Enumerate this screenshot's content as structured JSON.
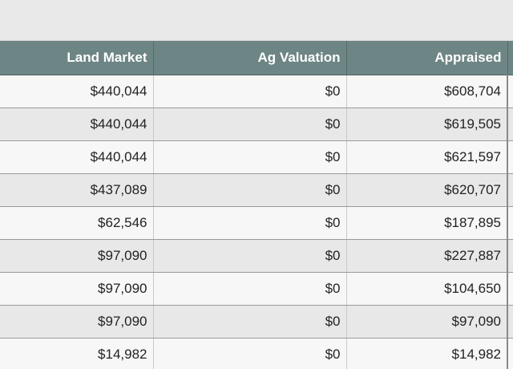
{
  "table": {
    "headers": {
      "land_market": "Land Market",
      "ag_valuation": "Ag Valuation",
      "appraised": "Appraised"
    },
    "rows": [
      {
        "land_market": "$440,044",
        "ag_valuation": "$0",
        "appraised": "$608,704"
      },
      {
        "land_market": "$440,044",
        "ag_valuation": "$0",
        "appraised": "$619,505"
      },
      {
        "land_market": "$440,044",
        "ag_valuation": "$0",
        "appraised": "$621,597"
      },
      {
        "land_market": "$437,089",
        "ag_valuation": "$0",
        "appraised": "$620,707"
      },
      {
        "land_market": "$62,546",
        "ag_valuation": "$0",
        "appraised": "$187,895"
      },
      {
        "land_market": "$97,090",
        "ag_valuation": "$0",
        "appraised": "$227,887"
      },
      {
        "land_market": "$97,090",
        "ag_valuation": "$0",
        "appraised": "$104,650"
      },
      {
        "land_market": "$97,090",
        "ag_valuation": "$0",
        "appraised": "$97,090"
      },
      {
        "land_market": "$14,982",
        "ag_valuation": "$0",
        "appraised": "$14,982"
      }
    ]
  },
  "colors": {
    "header_bg": "#6e8585",
    "header_text": "#ffffff",
    "row_odd": "#f7f7f7",
    "row_even": "#e8e8e8"
  }
}
